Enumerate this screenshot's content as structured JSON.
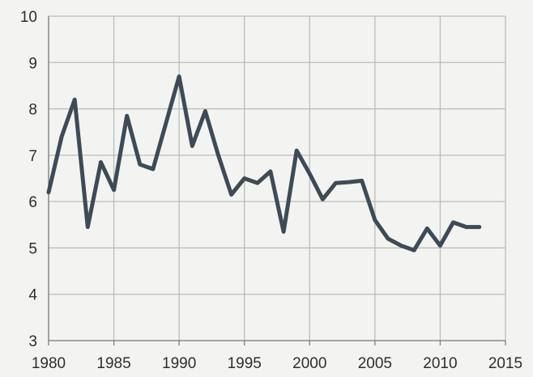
{
  "chart_data": {
    "type": "line",
    "title": "",
    "xlabel": "",
    "ylabel": "",
    "xlim": [
      1980,
      2015
    ],
    "ylim": [
      3,
      10
    ],
    "x_ticks": [
      1980,
      1985,
      1990,
      1995,
      2000,
      2005,
      2010,
      2015
    ],
    "y_ticks": [
      3,
      4,
      5,
      6,
      7,
      8,
      9,
      10
    ],
    "grid": true,
    "legend": "none",
    "series": [
      {
        "color": "#3e4b56",
        "x": [
          1980,
          1981,
          1982,
          1983,
          1984,
          1985,
          1986,
          1987,
          1988,
          1989,
          1990,
          1991,
          1992,
          1993,
          1994,
          1995,
          1996,
          1997,
          1998,
          1999,
          2000,
          2001,
          2002,
          2003,
          2004,
          2005,
          2006,
          2007,
          2008,
          2009,
          2010,
          2011,
          2012,
          2013
        ],
        "values": [
          6.2,
          7.4,
          8.2,
          5.45,
          6.85,
          6.25,
          7.85,
          6.8,
          6.7,
          7.7,
          8.7,
          7.2,
          7.95,
          7.0,
          6.15,
          6.5,
          6.4,
          6.65,
          5.35,
          7.1,
          6.6,
          6.05,
          6.4,
          6.42,
          6.45,
          5.6,
          5.2,
          5.05,
          4.95,
          5.42,
          5.05,
          5.55,
          5.45,
          5.45
        ]
      }
    ]
  }
}
